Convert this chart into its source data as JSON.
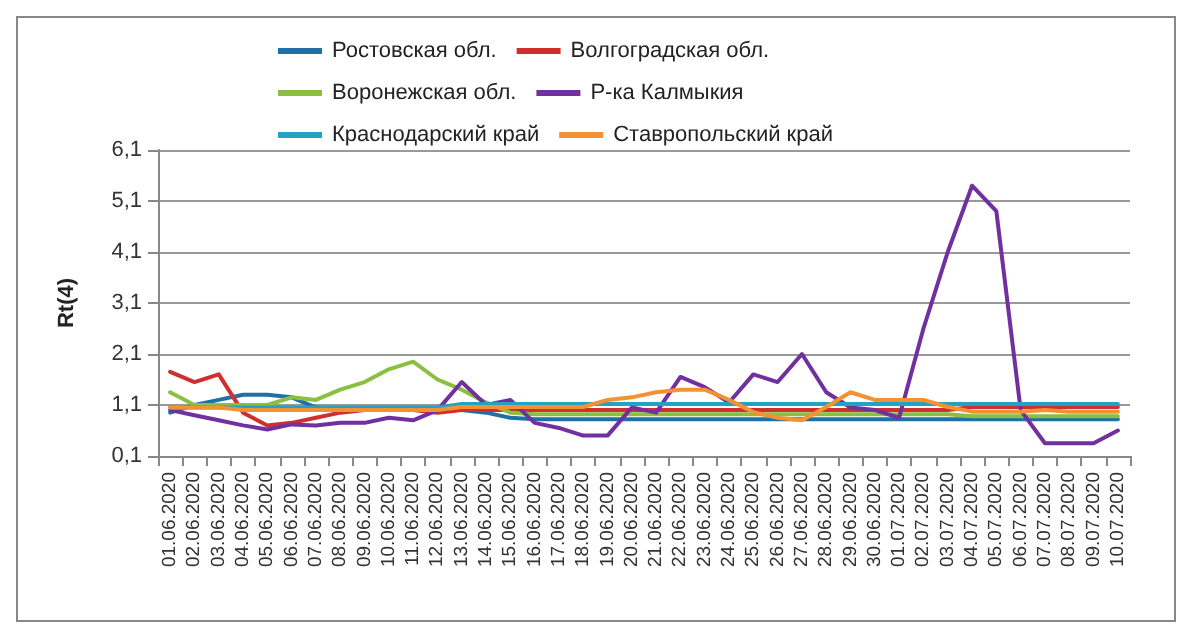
{
  "chart_data": {
    "type": "line",
    "ylabel": "Rt(4)",
    "categories": [
      "01.06.2020",
      "02.06.2020",
      "03.06.2020",
      "04.06.2020",
      "05.06.2020",
      "06.06.2020",
      "07.06.2020",
      "08.06.2020",
      "09.06.2020",
      "10.06.2020",
      "11.06.2020",
      "12.06.2020",
      "13.06.2020",
      "14.06.2020",
      "15.06.2020",
      "16.06.2020",
      "17.06.2020",
      "18.06.2020",
      "19.06.2020",
      "20.06.2020",
      "21.06.2020",
      "22.06.2020",
      "23.06.2020",
      "24.06.2020",
      "25.06.2020",
      "26.06.2020",
      "27.06.2020",
      "28.06.2020",
      "29.06.2020",
      "30.06.2020",
      "01.07.2020",
      "02.07.2020",
      "03.07.2020",
      "04.07.2020",
      "05.07.2020",
      "06.07.2020",
      "07.07.2020",
      "08.07.2020",
      "09.07.2020",
      "10.07.2020"
    ],
    "series": [
      {
        "name": "Ростовская обл.",
        "color": "#1f6fa8",
        "values": [
          0.95,
          1.1,
          1.2,
          1.3,
          1.3,
          1.25,
          1.05,
          1.0,
          1.0,
          1.0,
          1.0,
          1.0,
          1.0,
          0.95,
          0.85,
          0.82,
          0.82,
          0.82,
          0.82,
          0.82,
          0.82,
          0.82,
          0.82,
          0.82,
          0.82,
          0.82,
          0.82,
          0.82,
          0.82,
          0.82,
          0.82,
          0.82,
          0.82,
          0.82,
          0.82,
          0.82,
          0.82,
          0.82,
          0.82,
          0.82
        ]
      },
      {
        "name": "Волгоградская обл.",
        "color": "#d02f2f",
        "values": [
          1.75,
          1.55,
          1.7,
          0.95,
          0.7,
          0.75,
          0.85,
          0.95,
          1.0,
          1.0,
          1.0,
          0.95,
          1.0,
          1.0,
          1.0,
          1.0,
          1.0,
          1.0,
          1.0,
          1.0,
          1.0,
          1.0,
          1.0,
          1.0,
          1.0,
          1.0,
          1.0,
          1.0,
          1.0,
          1.0,
          1.0,
          1.0,
          1.0,
          1.06,
          1.06,
          1.06,
          1.06,
          1.06,
          1.06,
          1.06
        ]
      },
      {
        "name": "Воронежская обл.",
        "color": "#8bbf3f",
        "values": [
          1.35,
          1.1,
          1.1,
          1.1,
          1.1,
          1.25,
          1.2,
          1.4,
          1.55,
          1.8,
          1.95,
          1.6,
          1.4,
          1.15,
          0.95,
          0.92,
          0.92,
          0.92,
          0.92,
          0.92,
          0.92,
          0.92,
          0.92,
          0.92,
          0.92,
          0.92,
          0.92,
          0.92,
          0.92,
          0.92,
          0.92,
          0.92,
          0.92,
          0.88,
          0.88,
          0.88,
          0.88,
          0.88,
          0.88,
          0.88
        ]
      },
      {
        "name": "Р-ка Калмыкия",
        "color": "#7030a0",
        "values": [
          1.0,
          0.9,
          0.8,
          0.7,
          0.62,
          0.72,
          0.7,
          0.75,
          0.75,
          0.85,
          0.8,
          1.0,
          1.55,
          1.1,
          1.2,
          0.75,
          0.65,
          0.5,
          0.5,
          1.05,
          0.95,
          1.65,
          1.45,
          1.15,
          1.7,
          1.55,
          2.1,
          1.35,
          1.05,
          1.0,
          0.85,
          2.6,
          4.1,
          5.4,
          4.9,
          1.0,
          0.35,
          0.35,
          0.35,
          0.6
        ]
      },
      {
        "name": "Краснодарский край",
        "color": "#23a3c4",
        "values": [
          1.05,
          1.05,
          1.05,
          1.05,
          1.05,
          1.05,
          1.05,
          1.05,
          1.05,
          1.05,
          1.05,
          1.05,
          1.12,
          1.12,
          1.12,
          1.12,
          1.12,
          1.12,
          1.12,
          1.12,
          1.12,
          1.12,
          1.12,
          1.12,
          1.12,
          1.12,
          1.12,
          1.12,
          1.12,
          1.12,
          1.12,
          1.12,
          1.12,
          1.12,
          1.12,
          1.12,
          1.12,
          1.12,
          1.12,
          1.12
        ]
      },
      {
        "name": "Ставропольский край",
        "color": "#f39233",
        "values": [
          1.05,
          1.05,
          1.05,
          1.0,
          1.0,
          1.0,
          1.0,
          1.0,
          1.0,
          1.0,
          1.0,
          1.0,
          1.06,
          1.06,
          1.06,
          1.06,
          1.06,
          1.06,
          1.2,
          1.25,
          1.35,
          1.4,
          1.4,
          1.2,
          0.96,
          0.85,
          0.8,
          1.06,
          1.35,
          1.2,
          1.2,
          1.2,
          1.06,
          0.97,
          0.97,
          0.97,
          1.0,
          0.97,
          0.97,
          0.97
        ]
      }
    ],
    "ylim": [
      0.1,
      6.1
    ],
    "yticks": [
      {
        "value": 0.1,
        "label": "0,1"
      },
      {
        "value": 1.1,
        "label": "1,1"
      },
      {
        "value": 2.1,
        "label": "2,1"
      },
      {
        "value": 3.1,
        "label": "3,1"
      },
      {
        "value": 4.1,
        "label": "4,1"
      },
      {
        "value": 5.1,
        "label": "5,1"
      },
      {
        "value": 6.1,
        "label": "6,1"
      }
    ],
    "grid": "y",
    "legend": "top",
    "marker": "none",
    "line_style": "solid"
  }
}
